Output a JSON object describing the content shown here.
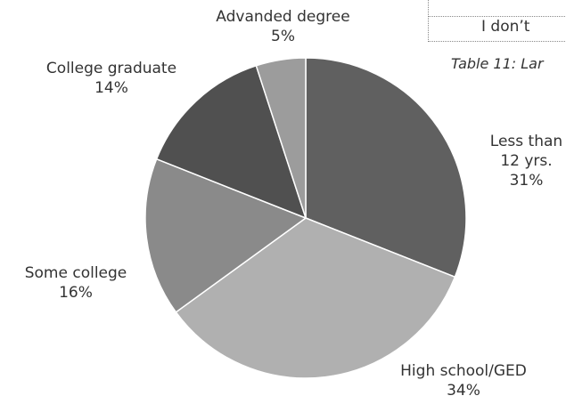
{
  "chart_data": {
    "type": "pie",
    "categories": [
      "Less than 12 yrs.",
      "High school/GED",
      "Some college",
      "College graduate",
      "Advanded degree"
    ],
    "values": [
      31,
      34,
      16,
      14,
      5
    ],
    "value_labels": [
      "31%",
      "34%",
      "16%",
      "14%",
      "5%"
    ],
    "colors": [
      "#606060",
      "#b0b0b0",
      "#8a8a8a",
      "#505050",
      "#9c9c9c"
    ],
    "annotations": [
      "I don’t",
      "Table 11: Lar"
    ]
  }
}
